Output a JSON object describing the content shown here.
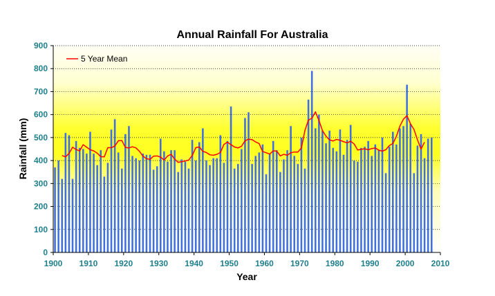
{
  "chart_data": {
    "type": "bar",
    "title": "Annual Rainfall For Australia",
    "xlabel": "Year",
    "ylabel": "Rainfall (mm)",
    "xlim": [
      1900,
      2010
    ],
    "ylim": [
      0,
      900
    ],
    "x_ticks": [
      "1900",
      "1910",
      "1920",
      "1930",
      "1940",
      "1950",
      "1960",
      "1970",
      "1980",
      "1990",
      "2000",
      "2010"
    ],
    "y_ticks": [
      "0",
      "100",
      "200",
      "300",
      "400",
      "500",
      "600",
      "700",
      "800",
      "900"
    ],
    "grid": "horizontal dotted",
    "legend_position": "top-left",
    "colors": {
      "bars": "#3f6fe0",
      "mean_line": "#ff0000",
      "tick_text": "#1f7f8a",
      "background_top": "#fffde0",
      "background_mid": "#ffff00"
    },
    "series": [
      {
        "name": "Annual Rainfall",
        "type": "bar",
        "x": [
          1900,
          1901,
          1902,
          1903,
          1904,
          1905,
          1906,
          1907,
          1908,
          1909,
          1910,
          1911,
          1912,
          1913,
          1914,
          1915,
          1916,
          1917,
          1918,
          1919,
          1920,
          1921,
          1922,
          1923,
          1924,
          1925,
          1926,
          1927,
          1928,
          1929,
          1930,
          1931,
          1932,
          1933,
          1934,
          1935,
          1936,
          1937,
          1938,
          1939,
          1940,
          1941,
          1942,
          1943,
          1944,
          1945,
          1946,
          1947,
          1948,
          1949,
          1950,
          1951,
          1952,
          1953,
          1954,
          1955,
          1956,
          1957,
          1958,
          1959,
          1960,
          1961,
          1962,
          1963,
          1964,
          1965,
          1966,
          1967,
          1968,
          1969,
          1970,
          1971,
          1972,
          1973,
          1974,
          1975,
          1976,
          1977,
          1978,
          1979,
          1980,
          1981,
          1982,
          1983,
          1984,
          1985,
          1986,
          1987,
          1988,
          1989,
          1990,
          1991,
          1992,
          1993,
          1994,
          1995,
          1996,
          1997,
          1998,
          1999,
          2000,
          2001,
          2002,
          2003,
          2004,
          2005,
          2006,
          2007
        ],
        "values": [
          370,
          400,
          320,
          520,
          510,
          320,
          485,
          455,
          450,
          430,
          525,
          430,
          380,
          445,
          330,
          390,
          535,
          580,
          435,
          365,
          515,
          550,
          420,
          410,
          400,
          430,
          425,
          425,
          360,
          375,
          495,
          440,
          395,
          445,
          445,
          350,
          405,
          395,
          365,
          490,
          400,
          480,
          540,
          400,
          380,
          410,
          410,
          510,
          390,
          485,
          635,
          365,
          385,
          450,
          585,
          610,
          385,
          420,
          435,
          470,
          340,
          430,
          485,
          445,
          350,
          405,
          445,
          550,
          420,
          385,
          500,
          365,
          665,
          790,
          540,
          600,
          530,
          475,
          530,
          455,
          440,
          535,
          425,
          490,
          555,
          400,
          395,
          455,
          460,
          485,
          420,
          470,
          445,
          500,
          345,
          460,
          525,
          470,
          540,
          550,
          730,
          560,
          345,
          465,
          515,
          410,
          495,
          500
        ]
      },
      {
        "name": "5 Year Mean",
        "type": "line",
        "x": [
          1902,
          1903,
          1904,
          1905,
          1906,
          1907,
          1908,
          1909,
          1910,
          1911,
          1912,
          1913,
          1914,
          1915,
          1916,
          1917,
          1918,
          1919,
          1920,
          1921,
          1922,
          1923,
          1924,
          1925,
          1926,
          1927,
          1928,
          1929,
          1930,
          1931,
          1932,
          1933,
          1934,
          1935,
          1936,
          1937,
          1938,
          1939,
          1940,
          1941,
          1942,
          1943,
          1944,
          1945,
          1946,
          1947,
          1948,
          1949,
          1950,
          1951,
          1952,
          1953,
          1954,
          1955,
          1956,
          1957,
          1958,
          1959,
          1960,
          1961,
          1962,
          1963,
          1964,
          1965,
          1966,
          1967,
          1968,
          1969,
          1970,
          1971,
          1972,
          1973,
          1974,
          1975,
          1976,
          1977,
          1978,
          1979,
          1980,
          1981,
          1982,
          1983,
          1984,
          1985,
          1986,
          1987,
          1988,
          1989,
          1990,
          1991,
          1992,
          1993,
          1994,
          1995,
          1996,
          1997,
          1998,
          1999,
          2000,
          2001,
          2002,
          2003,
          2004,
          2005
        ],
        "values": [
          422,
          416,
          431,
          458,
          448,
          442,
          469,
          458,
          447,
          442,
          432,
          417,
          416,
          456,
          456,
          463,
          486,
          487,
          457,
          455,
          460,
          455,
          440,
          419,
          408,
          405,
          419,
          420,
          415,
          402,
          420,
          427,
          406,
          392,
          395,
          398,
          402,
          422,
          456,
          459,
          440,
          435,
          425,
          423,
          427,
          435,
          470,
          480,
          469,
          459,
          455,
          462,
          486,
          493,
          491,
          481,
          474,
          439,
          434,
          428,
          442,
          441,
          420,
          427,
          423,
          434,
          437,
          437,
          454,
          530,
          576,
          584,
          612,
          574,
          530,
          506,
          490,
          485,
          492,
          488,
          482,
          477,
          484,
          472,
          446,
          449,
          451,
          447,
          452,
          455,
          445,
          441,
          447,
          465,
          474,
          505,
          550,
          580,
          595,
          560,
          535,
          490,
          450,
          480
        ]
      }
    ]
  }
}
